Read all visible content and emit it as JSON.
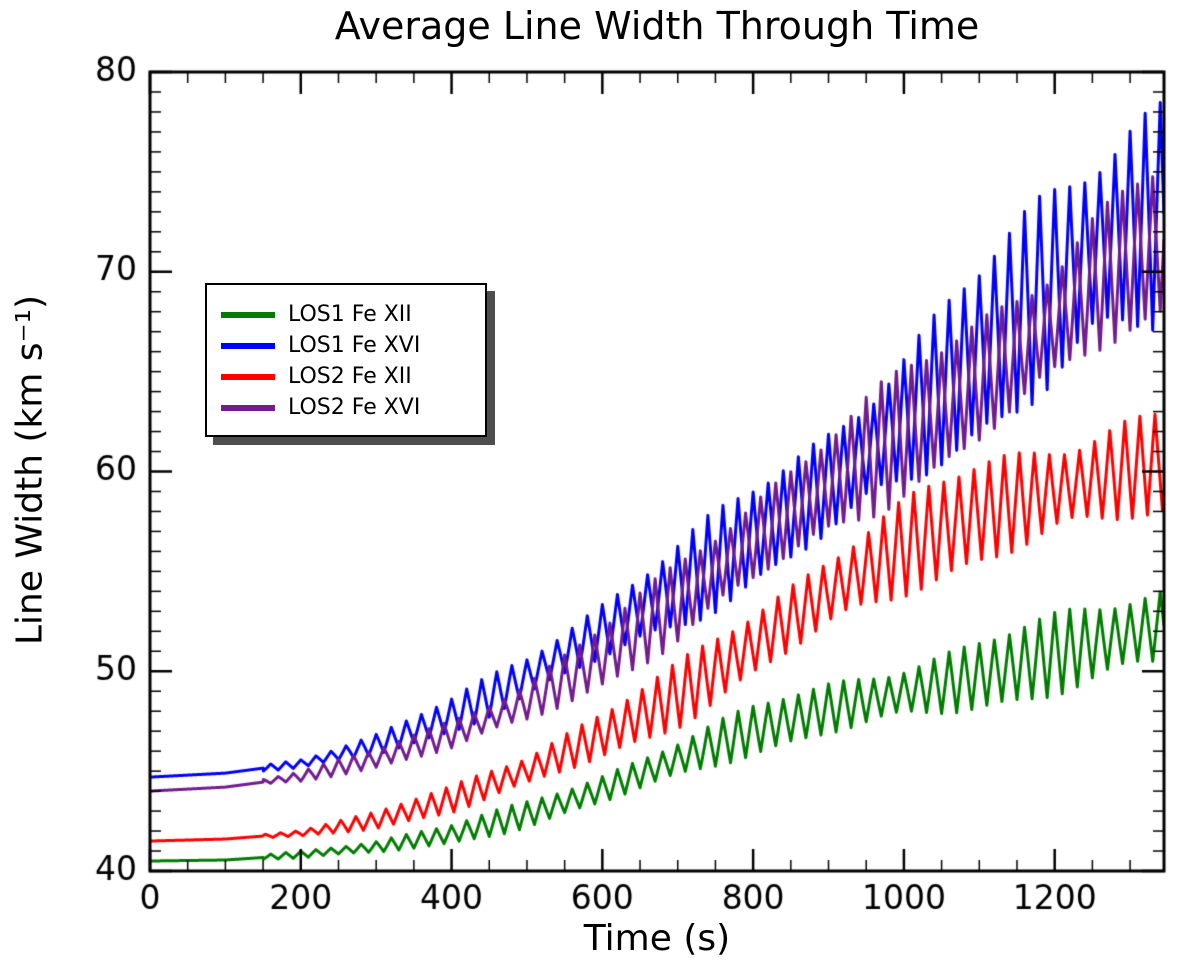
{
  "chart_data": {
    "type": "line",
    "title": "Average Line Width Through Time",
    "xlabel": "Time (s)",
    "ylabel": "Line Width (km s⁻¹)",
    "xlim": [
      0,
      1345
    ],
    "ylim": [
      40,
      80
    ],
    "x_major_ticks": [
      0,
      200,
      400,
      600,
      800,
      1000,
      1200
    ],
    "x_minor_step": 50,
    "y_major_ticks": [
      40,
      50,
      60,
      70,
      80
    ],
    "y_minor_step": 1,
    "grid": false,
    "legend": {
      "position": "upper-left"
    },
    "oscillation": {
      "start_s": 150,
      "period_s": 20,
      "waveform": "triangle"
    },
    "series": [
      {
        "name": "LOS1 Fe XII",
        "color": "#007d00",
        "phase": 0.0,
        "trend": [
          [
            0,
            40.5
          ],
          [
            100,
            40.55
          ],
          [
            200,
            40.8
          ],
          [
            300,
            41.2
          ],
          [
            400,
            41.9
          ],
          [
            500,
            42.9
          ],
          [
            600,
            44.1
          ],
          [
            700,
            45.5
          ],
          [
            800,
            46.9
          ],
          [
            900,
            48.1
          ],
          [
            1000,
            49.1
          ],
          [
            1100,
            50.0
          ],
          [
            1200,
            50.9
          ],
          [
            1300,
            51.7
          ],
          [
            1345,
            52.0
          ]
        ],
        "amplitude": [
          [
            0,
            0
          ],
          [
            150,
            0.1
          ],
          [
            300,
            0.3
          ],
          [
            500,
            0.55
          ],
          [
            700,
            0.85
          ],
          [
            900,
            1.15
          ],
          [
            1100,
            1.5
          ],
          [
            1345,
            1.9
          ]
        ]
      },
      {
        "name": "LOS1 Fe XVI",
        "color": "#0000ff",
        "phase": 0.0,
        "trend": [
          [
            0,
            44.7
          ],
          [
            100,
            44.9
          ],
          [
            200,
            45.4
          ],
          [
            300,
            46.4
          ],
          [
            400,
            47.8
          ],
          [
            500,
            49.6
          ],
          [
            600,
            51.8
          ],
          [
            700,
            54.2
          ],
          [
            800,
            57.0
          ],
          [
            900,
            59.8
          ],
          [
            1000,
            62.7
          ],
          [
            1100,
            65.6
          ],
          [
            1200,
            68.7
          ],
          [
            1250,
            70.5
          ],
          [
            1300,
            72.0
          ],
          [
            1345,
            73.0
          ]
        ],
        "amplitude": [
          [
            0,
            0
          ],
          [
            150,
            0.15
          ],
          [
            300,
            0.45
          ],
          [
            500,
            1.0
          ],
          [
            700,
            1.8
          ],
          [
            900,
            2.6
          ],
          [
            1100,
            3.6
          ],
          [
            1200,
            4.5
          ],
          [
            1345,
            5.8
          ]
        ]
      },
      {
        "name": "LOS2 Fe XII",
        "color": "#ff0000",
        "phase": 0.35,
        "trend": [
          [
            0,
            41.5
          ],
          [
            100,
            41.6
          ],
          [
            200,
            41.9
          ],
          [
            300,
            42.5
          ],
          [
            400,
            43.5
          ],
          [
            500,
            45.0
          ],
          [
            600,
            46.9
          ],
          [
            700,
            49.0
          ],
          [
            800,
            51.4
          ],
          [
            900,
            53.8
          ],
          [
            1000,
            55.9
          ],
          [
            1100,
            57.8
          ],
          [
            1200,
            59.3
          ],
          [
            1300,
            60.5
          ],
          [
            1345,
            60.8
          ]
        ],
        "amplitude": [
          [
            0,
            0
          ],
          [
            150,
            0.1
          ],
          [
            300,
            0.35
          ],
          [
            500,
            0.8
          ],
          [
            700,
            1.3
          ],
          [
            900,
            1.8
          ],
          [
            1100,
            2.2
          ],
          [
            1345,
            2.4
          ]
        ]
      },
      {
        "name": "LOS2 Fe XVI",
        "color": "#721c8e",
        "phase": 0.5,
        "trend": [
          [
            0,
            44.0
          ],
          [
            100,
            44.2
          ],
          [
            200,
            44.7
          ],
          [
            300,
            45.6
          ],
          [
            400,
            46.9
          ],
          [
            500,
            48.6
          ],
          [
            600,
            50.8
          ],
          [
            700,
            53.3
          ],
          [
            800,
            56.2
          ],
          [
            900,
            59.2
          ],
          [
            1000,
            62.2
          ],
          [
            1100,
            65.0
          ],
          [
            1200,
            67.7
          ],
          [
            1250,
            69.3
          ],
          [
            1300,
            70.4
          ],
          [
            1345,
            71.2
          ]
        ],
        "amplitude": [
          [
            0,
            0
          ],
          [
            150,
            0.15
          ],
          [
            300,
            0.4
          ],
          [
            500,
            0.95
          ],
          [
            700,
            1.7
          ],
          [
            900,
            2.4
          ],
          [
            1100,
            2.9
          ],
          [
            1345,
            3.3
          ]
        ]
      }
    ]
  }
}
